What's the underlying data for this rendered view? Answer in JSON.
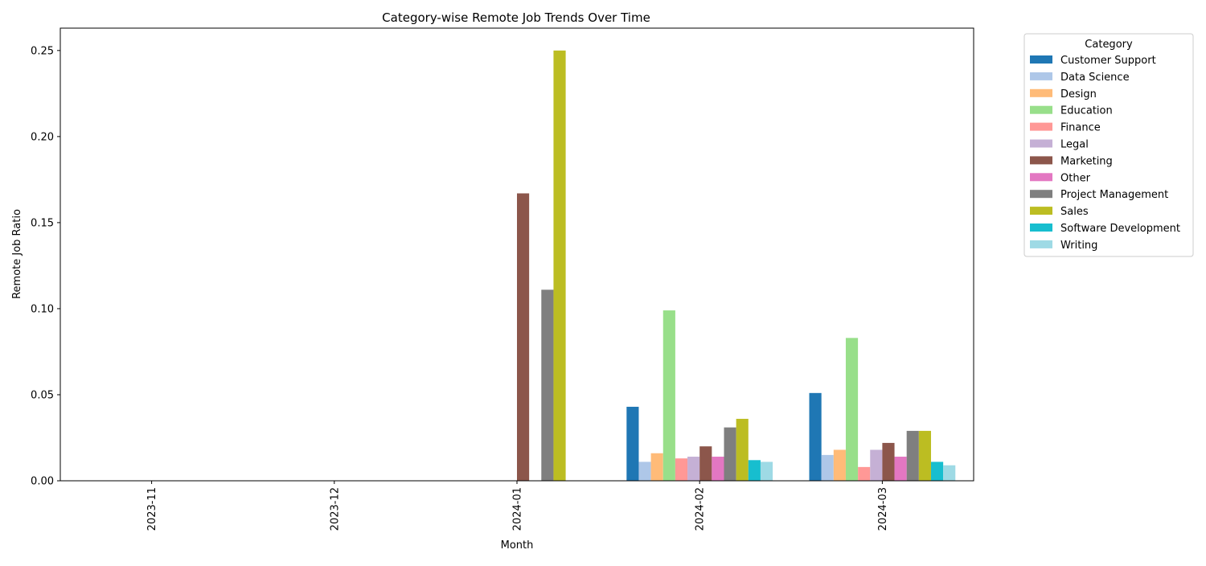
{
  "chart_data": {
    "type": "bar",
    "title": "Category-wise Remote Job Trends Over Time",
    "xlabel": "Month",
    "ylabel": "Remote Job Ratio",
    "categories": [
      "2023-11",
      "2023-12",
      "2024-01",
      "2024-02",
      "2024-03"
    ],
    "ylim": [
      0,
      0.263
    ],
    "yticks": [
      "0.00",
      "0.05",
      "0.10",
      "0.15",
      "0.20",
      "0.25"
    ],
    "ytick_values": [
      0,
      0.05,
      0.1,
      0.15,
      0.2,
      0.25
    ],
    "grid": false,
    "legend": {
      "title": "Category",
      "placement": "outside-right"
    },
    "series": [
      {
        "name": "Customer Support",
        "color": "#1f77b4",
        "values": [
          0,
          0,
          0,
          0.043,
          0.051
        ]
      },
      {
        "name": "Data Science",
        "color": "#aec7e8",
        "values": [
          0,
          0,
          0,
          0.011,
          0.015
        ]
      },
      {
        "name": "Design",
        "color": "#ffbb78",
        "values": [
          0,
          0,
          0,
          0.016,
          0.018
        ]
      },
      {
        "name": "Education",
        "color": "#98df8a",
        "values": [
          0,
          0,
          0,
          0.099,
          0.083
        ]
      },
      {
        "name": "Finance",
        "color": "#ff9896",
        "values": [
          0,
          0,
          0,
          0.013,
          0.008
        ]
      },
      {
        "name": "Legal",
        "color": "#c5b0d5",
        "values": [
          0,
          0,
          0,
          0.014,
          0.018
        ]
      },
      {
        "name": "Marketing",
        "color": "#8c564b",
        "values": [
          0,
          0,
          0.167,
          0.02,
          0.022
        ]
      },
      {
        "name": "Other",
        "color": "#e377c2",
        "values": [
          0,
          0,
          0,
          0.014,
          0.014
        ]
      },
      {
        "name": "Project Management",
        "color": "#7f7f7f",
        "values": [
          0,
          0,
          0.111,
          0.031,
          0.029
        ]
      },
      {
        "name": "Sales",
        "color": "#bcbd22",
        "values": [
          0,
          0,
          0.25,
          0.036,
          0.029
        ]
      },
      {
        "name": "Software Development",
        "color": "#17becf",
        "values": [
          0,
          0,
          0,
          0.012,
          0.011
        ]
      },
      {
        "name": "Writing",
        "color": "#9edae5",
        "values": [
          0,
          0,
          0,
          0.011,
          0.009
        ]
      }
    ]
  }
}
